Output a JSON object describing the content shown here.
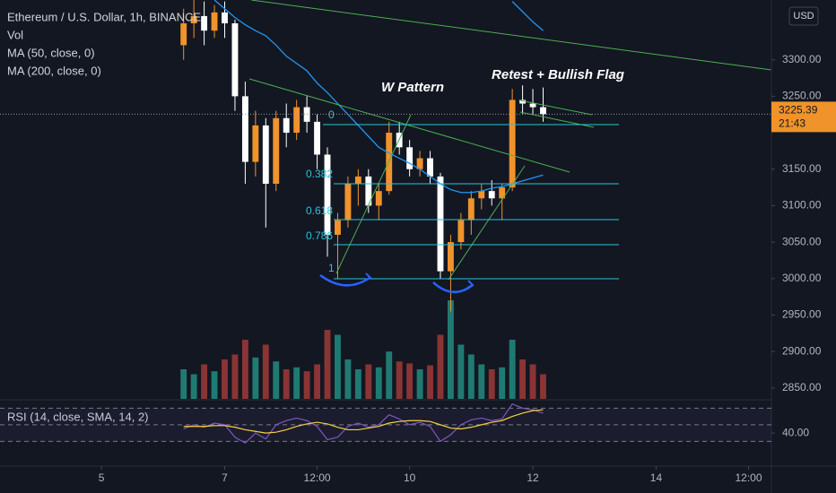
{
  "header": {
    "title": "Ethereum / U.S. Dollar, 1h, BINANCE",
    "volume_label": "Vol",
    "currency": "USD"
  },
  "chart_data": [
    {
      "type": "candlestick",
      "x": [
        32,
        36,
        40,
        44,
        48,
        52,
        56,
        60,
        64,
        68,
        72,
        76,
        80,
        84,
        88,
        92,
        96,
        100,
        104,
        108,
        112,
        116,
        120,
        124,
        128,
        132,
        136,
        140,
        144,
        148,
        152,
        156,
        160,
        164,
        168,
        172
      ],
      "open": [
        3320,
        3350,
        3360,
        3340,
        3365,
        3350,
        3250,
        3160,
        3210,
        3130,
        3220,
        3200,
        3235,
        3215,
        3170,
        3060,
        3080,
        3130,
        3140,
        3100,
        3120,
        3200,
        3180,
        3150,
        3165,
        3140,
        3010,
        3050,
        3080,
        3110,
        3120,
        3110,
        3125,
        3245,
        3240,
        3235
      ],
      "high": [
        3370,
        3390,
        3380,
        3375,
        3380,
        3355,
        3270,
        3230,
        3220,
        3230,
        3240,
        3245,
        3250,
        3225,
        3180,
        3090,
        3140,
        3150,
        3150,
        3130,
        3215,
        3215,
        3190,
        3175,
        3175,
        3145,
        3060,
        3090,
        3120,
        3130,
        3135,
        3130,
        3260,
        3265,
        3260,
        3262
      ],
      "low": [
        3300,
        3330,
        3320,
        3330,
        3330,
        3230,
        3130,
        3140,
        3070,
        3120,
        3180,
        3190,
        3200,
        3150,
        3030,
        3000,
        3070,
        3100,
        3090,
        3080,
        3115,
        3170,
        3140,
        3140,
        3130,
        3000,
        2955,
        3040,
        3060,
        3095,
        3100,
        3080,
        3120,
        3225,
        3225,
        3215
      ],
      "close": [
        3350,
        3360,
        3340,
        3365,
        3350,
        3250,
        3160,
        3210,
        3130,
        3220,
        3200,
        3235,
        3215,
        3170,
        3060,
        3080,
        3130,
        3140,
        3100,
        3120,
        3200,
        3180,
        3150,
        3165,
        3140,
        3010,
        3050,
        3080,
        3110,
        3120,
        3110,
        3125,
        3245,
        3240,
        3235,
        3225.39
      ],
      "volume": [
        30,
        25,
        35,
        28,
        40,
        45,
        60,
        42,
        55,
        38,
        30,
        32,
        28,
        35,
        70,
        65,
        40,
        30,
        35,
        32,
        48,
        38,
        36,
        30,
        34,
        65,
        100,
        55,
        45,
        35,
        30,
        32,
        60,
        40,
        35,
        25
      ],
      "up_color": "#f0932b",
      "down_color": "#ffffff",
      "volume_up_color": "#1f7a72",
      "volume_down_color": "#8a3434",
      "series": [
        {
          "name": "MA (50, close, 0)",
          "color": "#2196f3",
          "values": [
            null,
            null,
            null,
            3382,
            3370,
            3358,
            3348,
            3340,
            3333,
            3320,
            3305,
            3295,
            3285,
            3268,
            3255,
            3240,
            3225,
            3210,
            3195,
            3180,
            3172,
            3165,
            3158,
            3150,
            3140,
            3130,
            3122,
            3118,
            3118,
            3120,
            3124,
            3126,
            3130,
            3134,
            3138,
            3142
          ]
        },
        {
          "name": "MA (200, close, 0)",
          "color": "#2196f3",
          "values": [
            null,
            null,
            null,
            null,
            null,
            null,
            null,
            null,
            null,
            null,
            null,
            null,
            null,
            null,
            null,
            null,
            null,
            null,
            null,
            null,
            null,
            null,
            null,
            null,
            null,
            null,
            null,
            null,
            null,
            null,
            null,
            null,
            3380,
            3366,
            3352,
            3340
          ]
        }
      ],
      "xlim": [
        -39.5,
        260.9
      ],
      "xticks": [
        {
          "value": 0,
          "label": "5"
        },
        {
          "value": 48,
          "label": "7"
        },
        {
          "value": 84,
          "label": "12:00"
        },
        {
          "value": 120,
          "label": "10"
        },
        {
          "value": 168,
          "label": "12"
        },
        {
          "value": 216,
          "label": "14"
        },
        {
          "value": 252,
          "label": "12:00"
        }
      ],
      "ylim": [
        2835,
        3382
      ],
      "yticks": [
        {
          "value": 2850,
          "label": "2850.00"
        },
        {
          "value": 2900,
          "label": "2900.00"
        },
        {
          "value": 2950,
          "label": "2950.00"
        },
        {
          "value": 3000,
          "label": "3000.00"
        },
        {
          "value": 3050,
          "label": "3050.00"
        },
        {
          "value": 3100,
          "label": "3100.00"
        },
        {
          "value": 3150,
          "label": "3150.00"
        },
        {
          "value": 3250,
          "label": "3250.00"
        },
        {
          "value": 3300,
          "label": "3300.00"
        }
      ],
      "annotations": [
        "W Pattern",
        "Retest + Bullish Flag"
      ],
      "fib_labels": [
        "0",
        "0.382",
        "0.618",
        "0.786",
        "1"
      ],
      "countdown": "21:43"
    },
    {
      "type": "line",
      "title": "RSI (14, close, SMA, 14, 2)",
      "x": [
        32,
        36,
        40,
        44,
        48,
        52,
        56,
        60,
        64,
        68,
        72,
        76,
        80,
        84,
        88,
        92,
        96,
        100,
        104,
        108,
        112,
        116,
        120,
        124,
        128,
        132,
        136,
        140,
        144,
        148,
        152,
        156,
        160,
        164,
        168,
        172
      ],
      "values": [
        45,
        50,
        47,
        52,
        50,
        35,
        28,
        40,
        33,
        50,
        55,
        58,
        55,
        48,
        32,
        35,
        48,
        52,
        47,
        50,
        62,
        57,
        50,
        53,
        48,
        30,
        38,
        50,
        56,
        58,
        55,
        57,
        75,
        70,
        68,
        64
      ],
      "sma_values": [
        48,
        48,
        48,
        49,
        49,
        47,
        44,
        42,
        40,
        41,
        44,
        48,
        51,
        53,
        51,
        47,
        44,
        44,
        46,
        48,
        52,
        54,
        55,
        55,
        54,
        50,
        46,
        45,
        47,
        50,
        53,
        55,
        60,
        64,
        67,
        68
      ],
      "color": "#7e57c2",
      "sma_color": "#f5d142",
      "ylim": [
        11,
        79
      ],
      "yticks": [
        {
          "value": 40,
          "label": "40.00"
        }
      ],
      "levels": [
        30,
        50,
        70
      ]
    }
  ]
}
